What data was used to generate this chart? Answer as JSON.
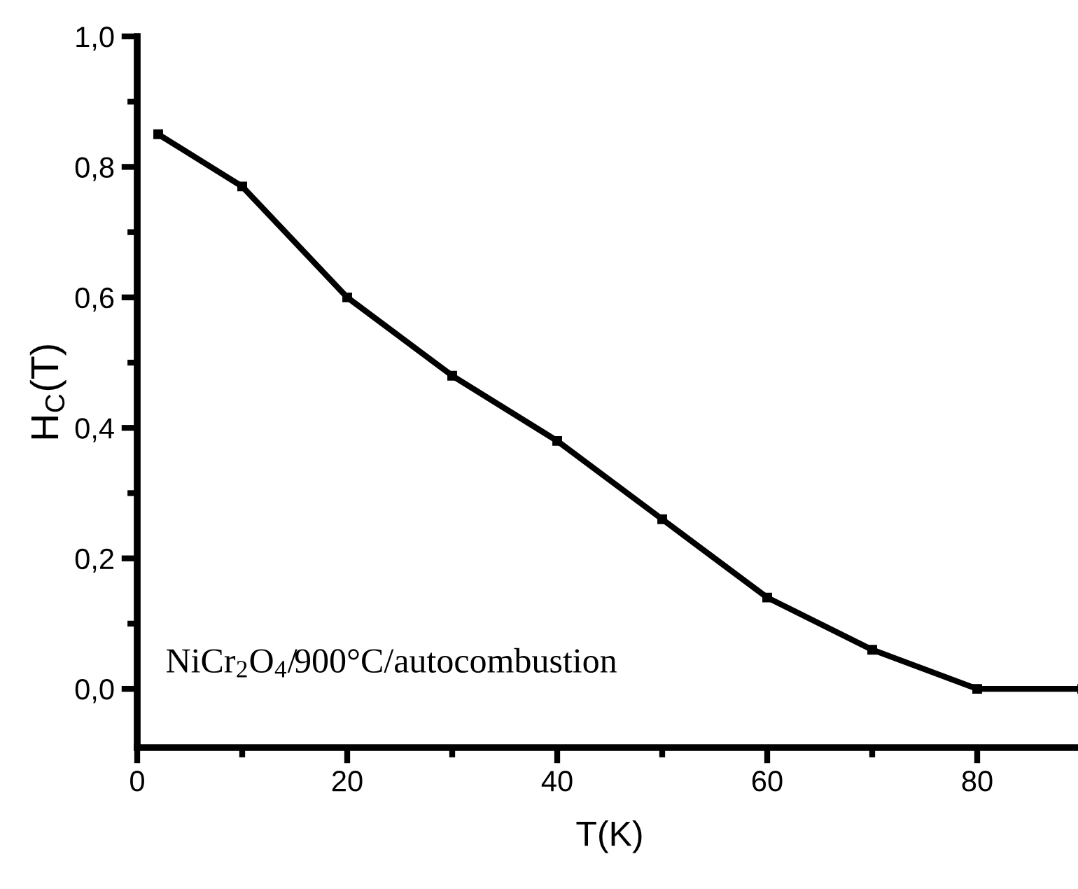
{
  "chart_data": {
    "type": "line",
    "xlabel": "T(K)",
    "ylabel": "H$_{C}$(T)",
    "x": [
      2,
      10,
      20,
      30,
      40,
      50,
      60,
      70,
      80,
      90
    ],
    "series": [
      {
        "color": "#000000",
        "values": [
          0.85,
          0.77,
          0.6,
          0.48,
          0.38,
          0.26,
          0.14,
          0.06,
          0,
          0
        ]
      }
    ],
    "xlim": [
      0,
      90
    ],
    "xticks": [
      0,
      20,
      40,
      60,
      80
    ],
    "ylim": [
      -0.09,
      1.0
    ],
    "yticks": [
      {
        "value": 0,
        "label": "0,0"
      },
      {
        "value": 0.2,
        "label": "0,2"
      },
      {
        "value": 0.4,
        "label": "0,4"
      },
      {
        "value": 0.6,
        "label": "0,6"
      },
      {
        "value": 0.8,
        "label": "0,8"
      },
      {
        "value": 1.0,
        "label": "1,0"
      }
    ],
    "marker": "square",
    "line_style": "solid",
    "grid": false,
    "legend": false,
    "annotations": [
      "NiCr$_{2}$O$_{4}$/900°C/autocombustion"
    ]
  }
}
